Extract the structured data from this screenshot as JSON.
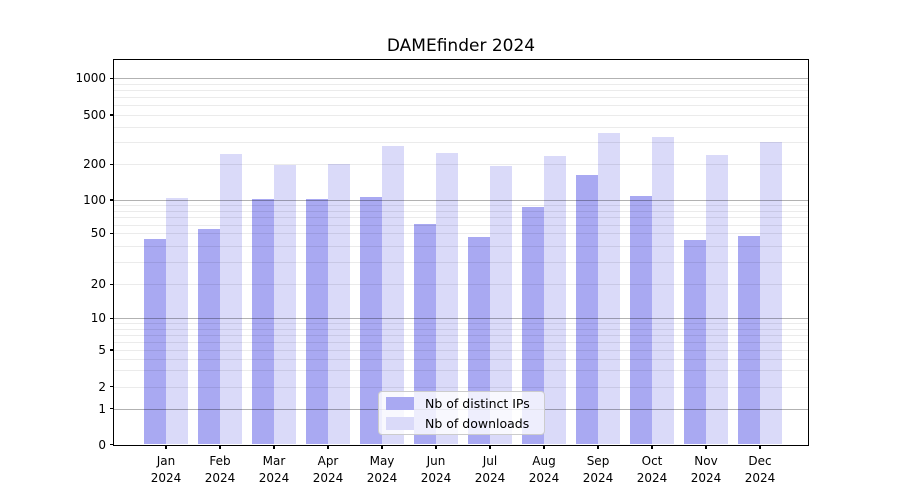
{
  "chart_data": {
    "type": "bar",
    "title": "DAMEfinder 2024",
    "categories": [
      "Jan",
      "Feb",
      "Mar",
      "Apr",
      "May",
      "Jun",
      "Jul",
      "Aug",
      "Sep",
      "Oct",
      "Nov",
      "Dec"
    ],
    "category_year_line": "2024",
    "series": [
      {
        "name": "Nb of distinct IPs",
        "color": "#a9a9f2",
        "values": [
          45,
          55,
          102,
          101,
          107,
          61,
          47,
          87,
          162,
          109,
          44,
          48
        ]
      },
      {
        "name": "Nb of downloads",
        "color": "#dadaf9",
        "values": [
          103,
          242,
          199,
          201,
          282,
          246,
          195,
          232,
          360,
          330,
          239,
          300
        ]
      }
    ],
    "yscale": "log-like (0,1 then log decades)",
    "yticks": [
      0,
      1,
      2,
      5,
      10,
      20,
      50,
      100,
      200,
      500,
      1000
    ],
    "ylim": [
      0,
      1400
    ],
    "xlabel": "",
    "ylabel": "",
    "grid": "major and minor horizontal gridlines, drawn over bars",
    "legend_position": "lower center inside plot"
  },
  "colors": {
    "background": "#ffffff",
    "bar_distinct_ips": "#a9a9f2",
    "bar_downloads": "#dadaf9",
    "grid_major": "#b3b3b3",
    "grid_minor": "#ebebeb",
    "axis": "#000000",
    "legend_border": "#cccccc"
  }
}
